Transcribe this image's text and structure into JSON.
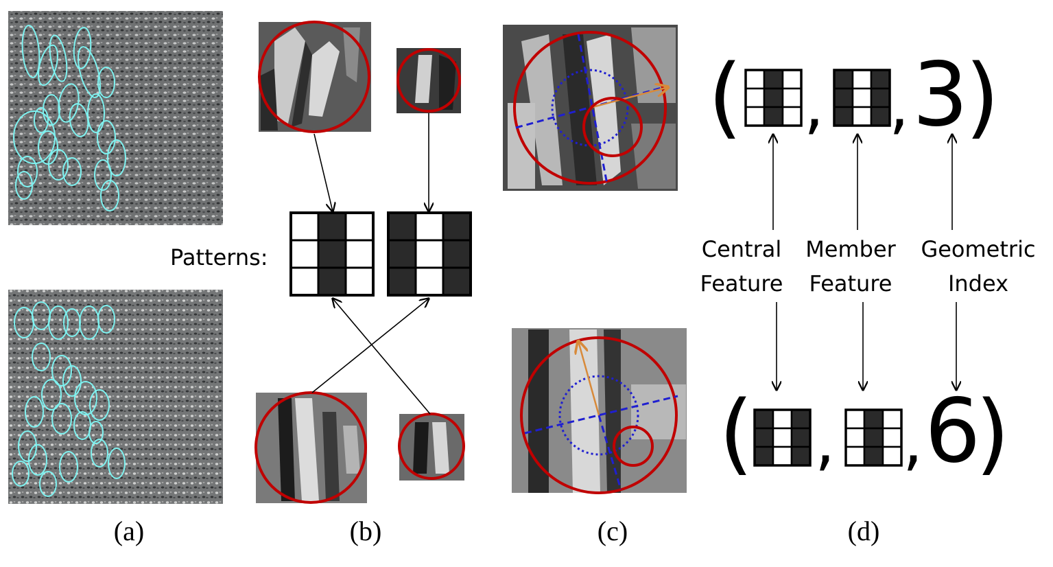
{
  "panel_labels": [
    "(a)",
    "(b)",
    "(c)",
    "(d)"
  ],
  "patterns_label": "Patterns:",
  "tuple_top": {
    "open": "(",
    "sep": ",",
    "index": "3",
    "close": ")"
  },
  "tuple_bottom": {
    "open": "(",
    "sep": ",",
    "index": "6",
    "close": ")"
  },
  "captions": {
    "central": [
      "Central",
      "Feature"
    ],
    "member": [
      "Member",
      "Feature"
    ],
    "geometric": [
      "Geometric",
      "Index"
    ]
  },
  "patterns": {
    "pattern_a": [
      "W",
      "D",
      "W",
      "W",
      "D",
      "W",
      "W",
      "D",
      "W"
    ],
    "pattern_b": [
      "D",
      "W",
      "D",
      "D",
      "W",
      "D",
      "D",
      "W",
      "D"
    ]
  },
  "colors": {
    "ellipse": "#7ff2f0",
    "circle": "#c00000",
    "blue_line": "#1f1fd0",
    "orange_arrow": "#d88a3a",
    "dark_cell": "#2a2a2a",
    "light_cell": "#ffffff"
  }
}
